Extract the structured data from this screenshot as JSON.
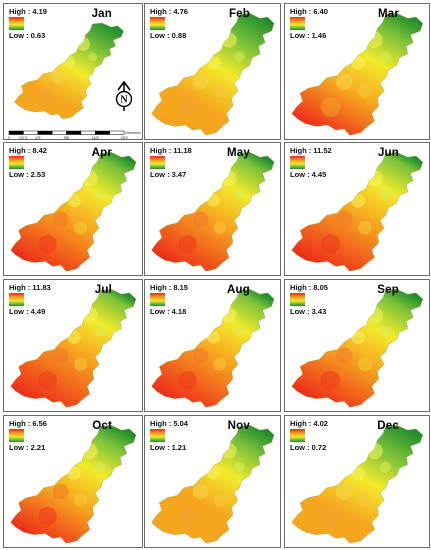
{
  "legend": {
    "high_prefix": "High : ",
    "low_prefix": "Low : "
  },
  "colors": {
    "high": "#ee2a1a",
    "mid_high": "#f6a51f",
    "mid": "#f2ea2b",
    "mid_low": "#7cc23a",
    "low": "#1f8d2c"
  },
  "scale_bar": {
    "ticks": [
      "0",
      "237.5",
      "475",
      "950",
      "1425",
      "1900"
    ],
    "unit": "Kilometers"
  },
  "north_arrow": {
    "label": "N",
    "icon": "north-arrow-icon"
  },
  "months": [
    {
      "name": "Jan",
      "high": "4.19",
      "low": "0.63",
      "heat": 0.22
    },
    {
      "name": "Feb",
      "high": "4.76",
      "low": "0.88",
      "heat": 0.3
    },
    {
      "name": "Mar",
      "high": "6.40",
      "low": "1.46",
      "heat": 0.55
    },
    {
      "name": "Apr",
      "high": "8.42",
      "low": "2.53",
      "heat": 0.78
    },
    {
      "name": "May",
      "high": "11.18",
      "low": "3.47",
      "heat": 0.82
    },
    {
      "name": "Jun",
      "high": "11.52",
      "low": "4.45",
      "heat": 0.88
    },
    {
      "name": "Jul",
      "high": "11.83",
      "low": "4.49",
      "heat": 0.92
    },
    {
      "name": "Aug",
      "high": "8.15",
      "low": "4.18",
      "heat": 0.85
    },
    {
      "name": "Sep",
      "high": "8.05",
      "low": "3.43",
      "heat": 0.72
    },
    {
      "name": "Oct",
      "high": "6.56",
      "low": "2.21",
      "heat": 0.62
    },
    {
      "name": "Nov",
      "high": "5.04",
      "low": "1.21",
      "heat": 0.5
    },
    {
      "name": "Dec",
      "high": "4.02",
      "low": "0.72",
      "heat": 0.28
    }
  ]
}
